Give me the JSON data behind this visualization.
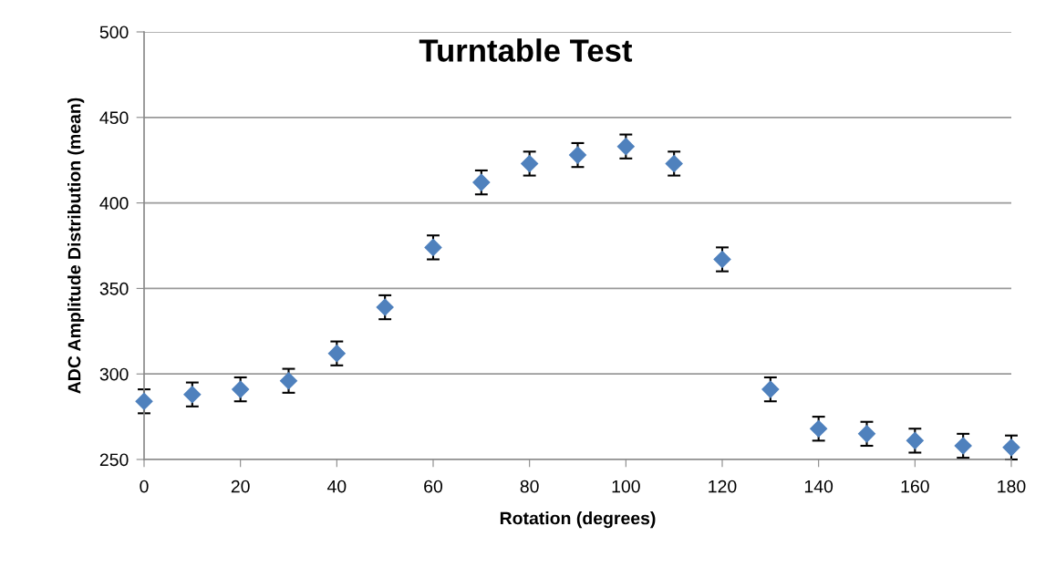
{
  "chart_data": {
    "type": "scatter",
    "title": "Turntable Test",
    "xlabel": "Rotation (degrees)",
    "ylabel": "ADC Amplitude Distribution (mean)",
    "x": [
      0,
      10,
      20,
      30,
      40,
      50,
      60,
      70,
      80,
      90,
      100,
      110,
      120,
      130,
      140,
      150,
      160,
      170,
      180
    ],
    "series": [
      {
        "color": "#4f81bd",
        "values": [
          284,
          288,
          291,
          296,
          312,
          339,
          374,
          412,
          423,
          428,
          433,
          423,
          367,
          291,
          268,
          265,
          261,
          258,
          257
        ],
        "errors": [
          7,
          7,
          7,
          7,
          7,
          7,
          7,
          7,
          7,
          7,
          7,
          7,
          7,
          7,
          7,
          7,
          7,
          7,
          7
        ]
      }
    ],
    "xlim": [
      0,
      180
    ],
    "xticks": [
      0,
      20,
      40,
      60,
      80,
      100,
      120,
      140,
      160,
      180
    ],
    "ylim": [
      250,
      500
    ],
    "yticks": [
      250,
      300,
      350,
      400,
      450,
      500
    ],
    "grid": "y",
    "marker": "diamond",
    "legend": false
  }
}
